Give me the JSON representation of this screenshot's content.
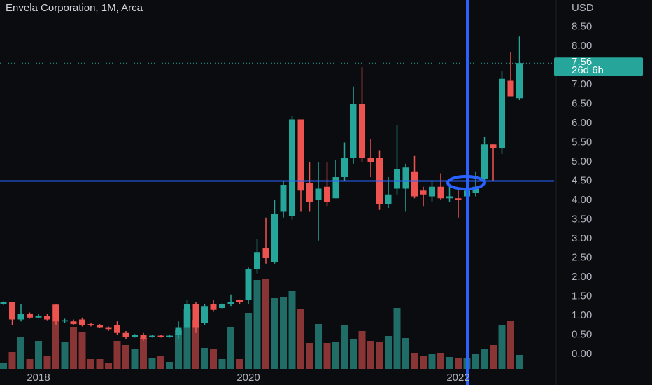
{
  "chart_data": {
    "type": "candlestick",
    "title": "Envela Corporation, 1M, Arca",
    "y_label": "USD",
    "categories": [
      null,
      null,
      null,
      null,
      "2018",
      null,
      null,
      null,
      null,
      null,
      null,
      null,
      null,
      null,
      null,
      null,
      null,
      null,
      null,
      null,
      null,
      null,
      null,
      null,
      null,
      null,
      null,
      null,
      "2020",
      null,
      null,
      null,
      null,
      null,
      null,
      null,
      null,
      null,
      null,
      null,
      null,
      null,
      null,
      null,
      null,
      null,
      null,
      null,
      null,
      null,
      null,
      null,
      "2022",
      null,
      null,
      null,
      null,
      null,
      null,
      null
    ],
    "open": [
      1.3,
      1.35,
      0.9,
      1.05,
      0.95,
      1.0,
      1.28,
      0.85,
      0.85,
      0.9,
      0.78,
      0.75,
      0.7,
      0.75,
      0.55,
      0.45,
      0.5,
      0.45,
      0.48,
      0.45,
      0.5,
      0.7,
      1.3,
      0.8,
      1.3,
      1.2,
      1.3,
      1.4,
      1.4,
      2.2,
      2.75,
      2.4,
      3.7,
      3.6,
      6.1,
      4.45,
      4.0,
      4.35,
      4.05,
      4.6,
      5.1,
      6.5,
      5.1,
      5.1,
      3.9,
      4.3,
      4.3,
      4.75,
      4.25,
      4.1,
      4.35,
      4.05,
      4.05,
      4.1,
      4.2,
      4.55,
      5.45,
      5.35,
      7.1,
      6.65
    ],
    "high": [
      1.37,
      1.35,
      1.3,
      1.08,
      1.05,
      1.05,
      1.3,
      0.92,
      0.9,
      0.95,
      0.8,
      0.78,
      0.72,
      0.85,
      0.6,
      0.52,
      0.55,
      0.5,
      0.5,
      0.5,
      0.85,
      1.4,
      1.35,
      1.3,
      1.4,
      1.32,
      1.55,
      1.42,
      2.25,
      3.0,
      3.55,
      4.0,
      4.5,
      6.2,
      6.1,
      5.0,
      5.0,
      5.0,
      5.05,
      5.5,
      6.95,
      7.45,
      5.6,
      5.3,
      4.6,
      5.95,
      4.95,
      5.15,
      4.35,
      4.5,
      4.7,
      4.4,
      4.25,
      4.4,
      4.75,
      5.65,
      5.45,
      7.35,
      7.85,
      8.25
    ],
    "low": [
      1.28,
      0.75,
      0.85,
      0.92,
      0.93,
      0.88,
      0.75,
      0.8,
      0.75,
      0.72,
      0.72,
      0.68,
      0.6,
      0.5,
      0.4,
      0.43,
      0.35,
      0.43,
      0.43,
      0.43,
      0.4,
      0.7,
      0.55,
      0.75,
      1.1,
      1.18,
      1.25,
      1.3,
      1.3,
      2.1,
      2.35,
      2.35,
      3.55,
      3.5,
      3.7,
      3.7,
      2.95,
      3.85,
      4.05,
      4.5,
      4.95,
      5.0,
      4.6,
      3.75,
      3.8,
      4.15,
      3.7,
      4.05,
      3.85,
      3.95,
      4.0,
      3.95,
      3.55,
      4.05,
      4.1,
      4.5,
      4.5,
      5.2,
      6.7,
      6.6
    ],
    "close": [
      1.35,
      0.9,
      1.05,
      0.95,
      1.0,
      0.9,
      0.85,
      0.88,
      0.78,
      0.75,
      0.75,
      0.7,
      0.65,
      0.55,
      0.45,
      0.5,
      0.4,
      0.48,
      0.45,
      0.48,
      0.7,
      1.3,
      0.7,
      1.25,
      1.15,
      1.3,
      1.35,
      1.35,
      2.2,
      2.65,
      2.5,
      3.65,
      4.4,
      6.1,
      4.25,
      3.95,
      4.3,
      3.95,
      4.6,
      5.1,
      6.5,
      5.1,
      5.0,
      3.9,
      4.15,
      4.8,
      4.85,
      4.1,
      4.15,
      4.35,
      4.05,
      4.1,
      4.0,
      4.25,
      4.35,
      5.45,
      5.35,
      7.15,
      6.7,
      7.56
    ],
    "volume": [
      8,
      24,
      46,
      14,
      40,
      18,
      92,
      38,
      60,
      52,
      14,
      14,
      8,
      40,
      34,
      28,
      44,
      16,
      18,
      10,
      56,
      86,
      70,
      30,
      28,
      14,
      60,
      14,
      80,
      127,
      129,
      101,
      103,
      111,
      85,
      37,
      64,
      37,
      39,
      62,
      42,
      54,
      40,
      39,
      47,
      87,
      44,
      23,
      19,
      21,
      22,
      17,
      15,
      15,
      21,
      29,
      34,
      63,
      68,
      20
    ],
    "up_color": "#26a69a",
    "down_color": "#ef5350",
    "up_volume_color": "#1f6d66",
    "down_volume_color": "#8a3535",
    "countdown": "26d 6h",
    "hline": 4.5,
    "ylim": [
      -0.4,
      9.2
    ],
    "yticks": [
      {
        "value": 0,
        "label": "0.00"
      },
      {
        "value": 0.5,
        "label": "0.50"
      },
      {
        "value": 1,
        "label": "1.00"
      },
      {
        "value": 1.5,
        "label": "1.50"
      },
      {
        "value": 2,
        "label": "2.00"
      },
      {
        "value": 2.5,
        "label": "2.50"
      },
      {
        "value": 3,
        "label": "3.00"
      },
      {
        "value": 3.5,
        "label": "3.50"
      },
      {
        "value": 4,
        "label": "4.00"
      },
      {
        "value": 4.5,
        "label": "4.50"
      },
      {
        "value": 5,
        "label": "5.00"
      },
      {
        "value": 5.5,
        "label": "5.50"
      },
      {
        "value": 6,
        "label": "6.00"
      },
      {
        "value": 6.5,
        "label": "6.50"
      },
      {
        "value": 7,
        "label": "7.00"
      },
      {
        "value": 8,
        "label": "8.00"
      },
      {
        "value": 8.5,
        "label": "8.50"
      }
    ]
  }
}
